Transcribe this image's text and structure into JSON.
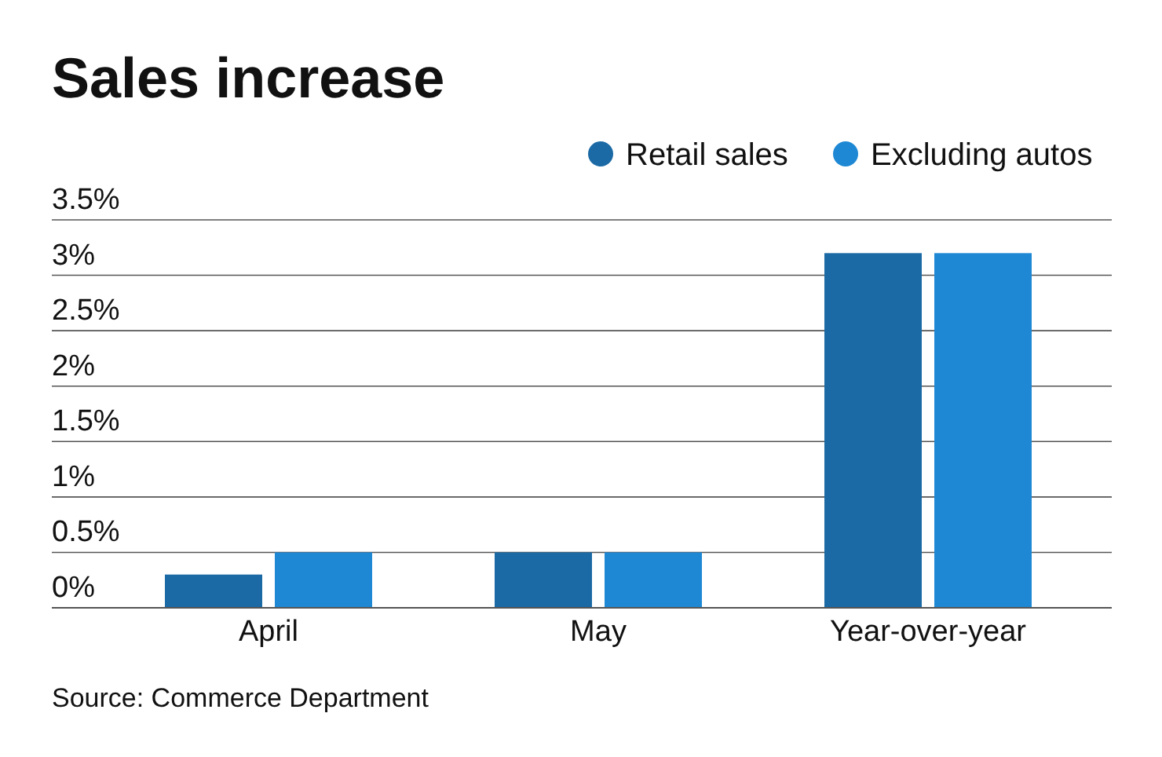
{
  "chart_data": {
    "type": "bar",
    "title": "Sales increase",
    "categories": [
      "April",
      "May",
      "Year-over-year"
    ],
    "series": [
      {
        "name": "Retail sales",
        "color": "#1b6aa5",
        "values": [
          0.3,
          0.5,
          3.2
        ]
      },
      {
        "name": "Excluding autos",
        "color": "#1e88d4",
        "values": [
          0.5,
          0.5,
          3.2
        ]
      }
    ],
    "ylim": [
      0,
      3.5
    ],
    "yticks": [
      {
        "value": 0,
        "label": "0%"
      },
      {
        "value": 0.5,
        "label": "0.5%"
      },
      {
        "value": 1,
        "label": "1%"
      },
      {
        "value": 1.5,
        "label": "1.5%"
      },
      {
        "value": 2,
        "label": "2%"
      },
      {
        "value": 2.5,
        "label": "2.5%"
      },
      {
        "value": 3,
        "label": "3%"
      },
      {
        "value": 3.5,
        "label": "3.5%"
      }
    ],
    "grid": "y",
    "legend": "top right",
    "annotations": [
      "Source: Commerce Department"
    ]
  }
}
